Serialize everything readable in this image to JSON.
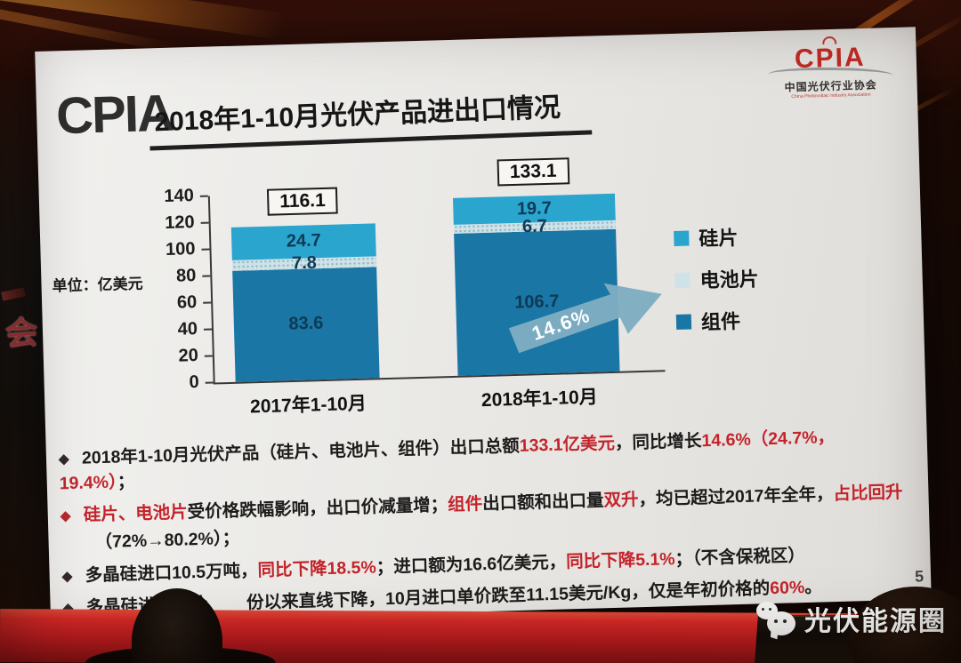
{
  "photo": {
    "watermark_text": "光伏能源圈",
    "side_banner_text": "会"
  },
  "slide": {
    "brand": "CPIA",
    "title": "2018年1-10月光伏产品进出口情况",
    "page_number": "5",
    "logo": {
      "name": "CPIA",
      "cn": "中国光伏行业协会",
      "en": "China Photovoltaic Industry Association"
    }
  },
  "chart_data": {
    "type": "bar",
    "stacked": true,
    "unit_label": "单位：亿美元",
    "categories": [
      "2017年1-10月",
      "2018年1-10月"
    ],
    "series": [
      {
        "name": "组件",
        "color": "#1a76a4",
        "values": [
          83.6,
          106.7
        ]
      },
      {
        "name": "电池片",
        "color": "#cfe2e7",
        "texture": "dotted",
        "values": [
          7.8,
          6.7
        ]
      },
      {
        "name": "硅片",
        "color": "#2aa5ce",
        "values": [
          24.7,
          19.7
        ]
      }
    ],
    "totals": [
      116.1,
      133.1
    ],
    "growth_label": "14.6%",
    "ylim": [
      0,
      140
    ],
    "yticks": [
      0,
      20,
      40,
      60,
      80,
      100,
      120,
      140
    ],
    "legend_order": [
      "硅片",
      "电池片",
      "组件"
    ],
    "legend_colors": {
      "硅片": "#2aa5ce",
      "电池片": "#cfe2e7",
      "组件": "#1a76a4"
    },
    "legend_position": "right",
    "grid": false,
    "accent_red": "#c3242b",
    "arrow_color": "#7fadc2"
  },
  "bullets_marker": "◆",
  "bullets": [
    {
      "marker_color": "#35292a",
      "lines": [
        [
          {
            "t": "2018年1-10月光伏产品（硅片、电池片、组件）出口总额"
          },
          {
            "t": "133.1亿美元",
            "red": true
          },
          {
            "t": "，同比增长"
          },
          {
            "t": "14.6%",
            "red": true
          },
          {
            "t": "（24.7%，19.4%）",
            "red": true
          },
          {
            "t": "；"
          }
        ]
      ]
    },
    {
      "marker_color": "#b5282d",
      "lines": [
        [
          {
            "t": "硅片、电池片",
            "red": true
          },
          {
            "t": "受价格跌幅影响，出口价减量增；"
          },
          {
            "t": "组件",
            "red": true
          },
          {
            "t": "出口额和出口量"
          },
          {
            "t": "双升",
            "red": true
          },
          {
            "t": "，均已超过2017年全年，"
          },
          {
            "t": "占比回升",
            "red": true
          }
        ],
        [
          {
            "t": "（72%→80.2%）；"
          }
        ]
      ]
    },
    {
      "marker_color": "#35292a",
      "lines": [
        [
          {
            "t": "多晶硅进口10.5万吨，"
          },
          {
            "t": "同比下降18.5%",
            "red": true
          },
          {
            "t": "；进口额为16.6亿美元，"
          },
          {
            "t": "同比下降5.1%",
            "red": true
          },
          {
            "t": "；（不含保税区）"
          }
        ]
      ]
    },
    {
      "marker_color": "#35292a",
      "lines": [
        [
          {
            "t": "多晶硅进口单价"
          },
          {
            "gap": 44
          },
          {
            "t": "份以来直线下降，10月进口单价跌至11.15美元/Kg，仅是年初价格的"
          },
          {
            "t": "60%",
            "red": true
          },
          {
            "t": "。"
          }
        ]
      ]
    }
  ]
}
